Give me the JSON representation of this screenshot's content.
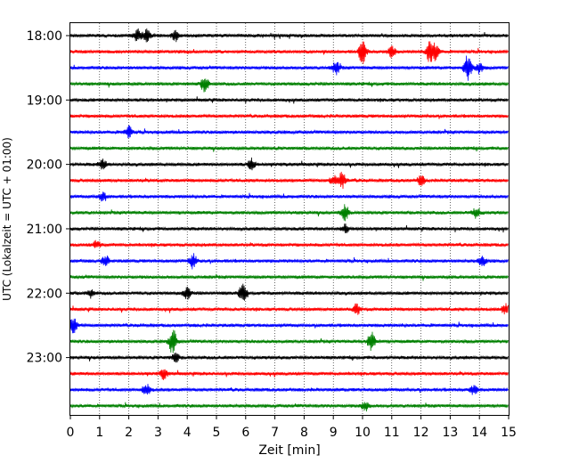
{
  "chart_data": {
    "type": "line",
    "title": "",
    "xlabel": "Zeit  [min]",
    "ylabel": "UTC (Lokalzeit = UTC + 01:00)",
    "xlim": [
      0,
      15
    ],
    "x_ticks": [
      0,
      1,
      2,
      3,
      4,
      5,
      6,
      7,
      8,
      9,
      10,
      11,
      12,
      13,
      14,
      15
    ],
    "y_ticks": [
      "18:00",
      "19:00",
      "20:00",
      "21:00",
      "22:00",
      "23:00"
    ],
    "grid": "vertical-dotted",
    "color_cycle": [
      "#000000",
      "#ff0000",
      "#0000ff",
      "#008000"
    ],
    "traces": [
      {
        "start": "18:00",
        "color": "#000000",
        "events": [
          {
            "t": 2.3,
            "amp": 1.6
          },
          {
            "t": 2.6,
            "amp": 1.5
          },
          {
            "t": 3.6,
            "amp": 1.3
          }
        ]
      },
      {
        "start": "18:15",
        "color": "#ff0000",
        "events": [
          {
            "t": 10.0,
            "amp": 3.0
          },
          {
            "t": 11.0,
            "amp": 1.3
          },
          {
            "t": 12.3,
            "amp": 2.8
          },
          {
            "t": 12.5,
            "amp": 1.8
          }
        ]
      },
      {
        "start": "18:30",
        "color": "#0000ff",
        "events": [
          {
            "t": 9.1,
            "amp": 1.6
          },
          {
            "t": 13.6,
            "amp": 3.2
          },
          {
            "t": 14.0,
            "amp": 1.3
          }
        ]
      },
      {
        "start": "18:45",
        "color": "#008000",
        "events": [
          {
            "t": 4.6,
            "amp": 2.0
          }
        ]
      },
      {
        "start": "19:00",
        "color": "#000000",
        "events": []
      },
      {
        "start": "19:15",
        "color": "#ff0000",
        "events": []
      },
      {
        "start": "19:30",
        "color": "#0000ff",
        "events": [
          {
            "t": 2.0,
            "amp": 1.5
          }
        ]
      },
      {
        "start": "19:45",
        "color": "#008000",
        "events": []
      },
      {
        "start": "20:00",
        "color": "#000000",
        "events": [
          {
            "t": 1.1,
            "amp": 1.1
          },
          {
            "t": 6.2,
            "amp": 1.3
          }
        ]
      },
      {
        "start": "20:15",
        "color": "#ff0000",
        "events": [
          {
            "t": 9.3,
            "amp": 2.0
          },
          {
            "t": 9.0,
            "amp": 1.2
          },
          {
            "t": 12.0,
            "amp": 1.2
          }
        ]
      },
      {
        "start": "20:30",
        "color": "#0000ff",
        "events": [
          {
            "t": 1.1,
            "amp": 1.0
          }
        ]
      },
      {
        "start": "20:45",
        "color": "#008000",
        "events": [
          {
            "t": 9.4,
            "amp": 2.0
          },
          {
            "t": 13.9,
            "amp": 1.4
          }
        ]
      },
      {
        "start": "21:00",
        "color": "#000000",
        "events": [
          {
            "t": 9.4,
            "amp": 1.0
          }
        ]
      },
      {
        "start": "21:15",
        "color": "#ff0000",
        "events": [
          {
            "t": 0.9,
            "amp": 1.0
          }
        ]
      },
      {
        "start": "21:30",
        "color": "#0000ff",
        "events": [
          {
            "t": 4.2,
            "amp": 1.8
          },
          {
            "t": 1.2,
            "amp": 1.2
          },
          {
            "t": 14.1,
            "amp": 1.2
          }
        ]
      },
      {
        "start": "21:45",
        "color": "#008000",
        "events": []
      },
      {
        "start": "22:00",
        "color": "#000000",
        "events": [
          {
            "t": 4.0,
            "amp": 1.5
          },
          {
            "t": 5.9,
            "amp": 2.2
          },
          {
            "t": 0.7,
            "amp": 1.0
          }
        ]
      },
      {
        "start": "22:15",
        "color": "#ff0000",
        "events": [
          {
            "t": 9.8,
            "amp": 1.2
          },
          {
            "t": 14.9,
            "amp": 1.3
          }
        ]
      },
      {
        "start": "22:30",
        "color": "#0000ff",
        "events": [
          {
            "t": 0.1,
            "amp": 2.0
          }
        ]
      },
      {
        "start": "22:45",
        "color": "#008000",
        "events": [
          {
            "t": 3.5,
            "amp": 3.2
          },
          {
            "t": 10.3,
            "amp": 2.2
          }
        ]
      },
      {
        "start": "23:00",
        "color": "#000000",
        "events": [
          {
            "t": 3.6,
            "amp": 1.1
          }
        ]
      },
      {
        "start": "23:15",
        "color": "#ff0000",
        "events": [
          {
            "t": 3.2,
            "amp": 1.2
          }
        ]
      },
      {
        "start": "23:30",
        "color": "#0000ff",
        "events": [
          {
            "t": 2.6,
            "amp": 1.4
          },
          {
            "t": 13.8,
            "amp": 1.1
          }
        ]
      },
      {
        "start": "23:45",
        "color": "#008000",
        "events": [
          {
            "t": 10.1,
            "amp": 1.2
          }
        ]
      }
    ]
  }
}
